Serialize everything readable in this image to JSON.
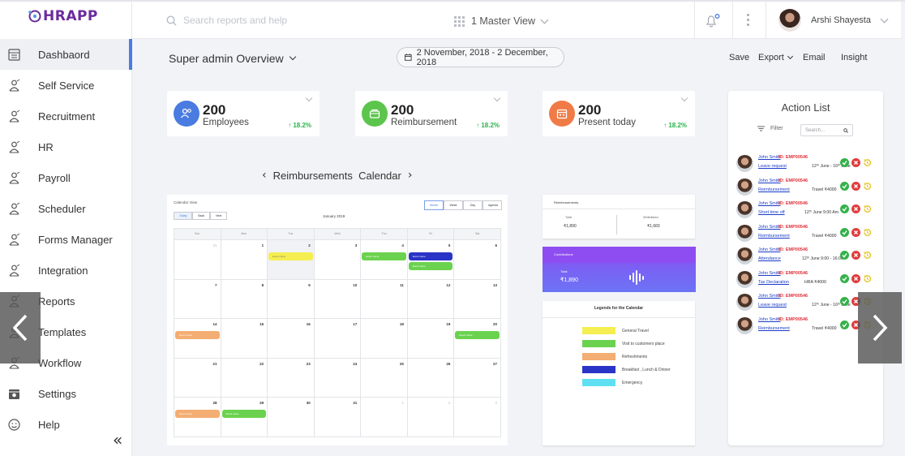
{
  "app": {
    "name": "HRAPP"
  },
  "sidebar": {
    "items": [
      {
        "label": "Dashbaord",
        "icon": "dashboard-icon"
      },
      {
        "label": "Self Service",
        "icon": "self-service-icon"
      },
      {
        "label": "Recruitment",
        "icon": "recruitment-icon"
      },
      {
        "label": "HR",
        "icon": "hr-icon"
      },
      {
        "label": "Payroll",
        "icon": "payroll-icon"
      },
      {
        "label": "Scheduler",
        "icon": "scheduler-icon"
      },
      {
        "label": "Forms Manager",
        "icon": "forms-manager-icon"
      },
      {
        "label": "Integration",
        "icon": "integration-icon"
      },
      {
        "label": "Reports",
        "icon": "reports-icon"
      },
      {
        "label": "Templates",
        "icon": "templates-icon"
      },
      {
        "label": "Workflow",
        "icon": "workflow-icon"
      },
      {
        "label": "Settings",
        "icon": "settings-icon"
      },
      {
        "label": "Help",
        "icon": "help-icon"
      }
    ],
    "active_index": 0,
    "collapse_glyph": "«"
  },
  "topbar": {
    "search_placeholder": "Search reports and help",
    "view_label": "1 Master View",
    "user_name": "Arshi Shayesta"
  },
  "overview": {
    "title": "Super admin Overview",
    "date_range": "2 November, 2018 - 2 December, 2018",
    "actions": [
      "Save",
      "Export",
      "Email",
      "Insight"
    ]
  },
  "stats": [
    {
      "value": "200",
      "label": "Employees",
      "trend": "↑ 18.2%",
      "color": "#4a7be0",
      "icon": "employees-icon"
    },
    {
      "value": "200",
      "label": "Reimbursement",
      "trend": "↑ 18.2%",
      "color": "#5cc54c",
      "icon": "wallet-icon"
    },
    {
      "value": "200",
      "label": "Present today",
      "trend": "↑ 18.2%",
      "color": "#f07b47",
      "icon": "calendar-icon"
    }
  ],
  "calendar_section": {
    "title": "Reimbursements  Calendar",
    "prev": "‹",
    "next": "›"
  },
  "calendar": {
    "title": "Calendar View",
    "nav": [
      "Today",
      "Back",
      "Next"
    ],
    "views": [
      "Month",
      "Week",
      "Day",
      "Agenda"
    ],
    "month": "January 2019",
    "dows": [
      "Sun",
      "Mon",
      "Tue",
      "Wed",
      "Thu",
      "Fri",
      "Sat"
    ],
    "weeks": [
      [
        "31",
        "1",
        "2",
        "3",
        "4",
        "5",
        "6"
      ],
      [
        "7",
        "8",
        "9",
        "10",
        "11",
        "12",
        "13"
      ],
      [
        "14",
        "15",
        "16",
        "17",
        "18",
        "19",
        "20"
      ],
      [
        "21",
        "22",
        "23",
        "24",
        "25",
        "26",
        "27"
      ],
      [
        "28",
        "29",
        "30",
        "31",
        "1",
        "2",
        "3"
      ]
    ],
    "events": [
      {
        "week": 0,
        "day": 2,
        "slot": 0,
        "label": "Event name",
        "color": "#f5ee50"
      },
      {
        "week": 0,
        "day": 4,
        "slot": 0,
        "label": "Event name",
        "color": "#6bd24f"
      },
      {
        "week": 0,
        "day": 5,
        "slot": 0,
        "label": "Event name",
        "color": "#2a34c6"
      },
      {
        "week": 0,
        "day": 5,
        "slot": 1,
        "label": "Event name",
        "color": "#6bd24f"
      },
      {
        "week": 2,
        "day": 0,
        "slot": 0,
        "label": "Event name",
        "color": "#f4ad72"
      },
      {
        "week": 2,
        "day": 6,
        "slot": 0,
        "label": "Event name",
        "color": "#6bd24f"
      },
      {
        "week": 4,
        "day": 0,
        "slot": 0,
        "label": "Event name",
        "color": "#f4ad72"
      },
      {
        "week": 4,
        "day": 1,
        "slot": 0,
        "label": "Event name",
        "color": "#6bd24f"
      }
    ]
  },
  "reimbursements": {
    "title": "Reimbursements",
    "total_label": "Total",
    "total_value": "₹1,890",
    "settled_label": "Whitelisted",
    "settled_value": "₹1,660"
  },
  "contributions": {
    "title": "Contributions",
    "total_label": "Total",
    "total_value": "₹1,890"
  },
  "legend": {
    "title": "Legends for the Calendar",
    "items": [
      {
        "label": "General Travel",
        "color": "#f5ee50"
      },
      {
        "label": "Visit to customers place",
        "color": "#6bd24f"
      },
      {
        "label": "Refreshments",
        "color": "#f4ad72"
      },
      {
        "label": "Breakfast , Lunch & Dinner",
        "color": "#2a34c6"
      },
      {
        "label": "Emergency",
        "color": "#5ee0f2"
      }
    ]
  },
  "action_list": {
    "title": "Action List",
    "filter_label": "Filter",
    "search_placeholder": "Search...",
    "items": [
      {
        "name": "John Smith",
        "id": "ID: EMP00546",
        "type": "Leave request",
        "detail": "12ᵗʰ June - 16ᵗʰ June"
      },
      {
        "name": "John Smith",
        "id": "ID: EMP00546",
        "type": "Reimbursement",
        "detail": "Travel  ₹4000"
      },
      {
        "name": "John Smith",
        "id": "ID: EMP00546",
        "type": "Short time off",
        "detail": "12ᵗʰ June 9:00 Am"
      },
      {
        "name": "John Smith",
        "id": "ID: EMP00546",
        "type": "Reimbursement",
        "detail": "Travel  ₹4000"
      },
      {
        "name": "John Smith",
        "id": "ID: EMP00546",
        "type": "Attendance",
        "detail": "12ᵗʰ June 9:00 - 16:00"
      },
      {
        "name": "John Smith",
        "id": "ID: EMP00546",
        "type": "Tax Declaration",
        "detail": "HRA  ₹4000"
      },
      {
        "name": "John Smith",
        "id": "ID: EMP00546",
        "type": "Leave request",
        "detail": "12ᵗʰ June - 16ᵗʰ June"
      },
      {
        "name": "John Smith",
        "id": "ID: EMP00546",
        "type": "Reimbursement",
        "detail": "Travel  ₹4000"
      }
    ]
  }
}
